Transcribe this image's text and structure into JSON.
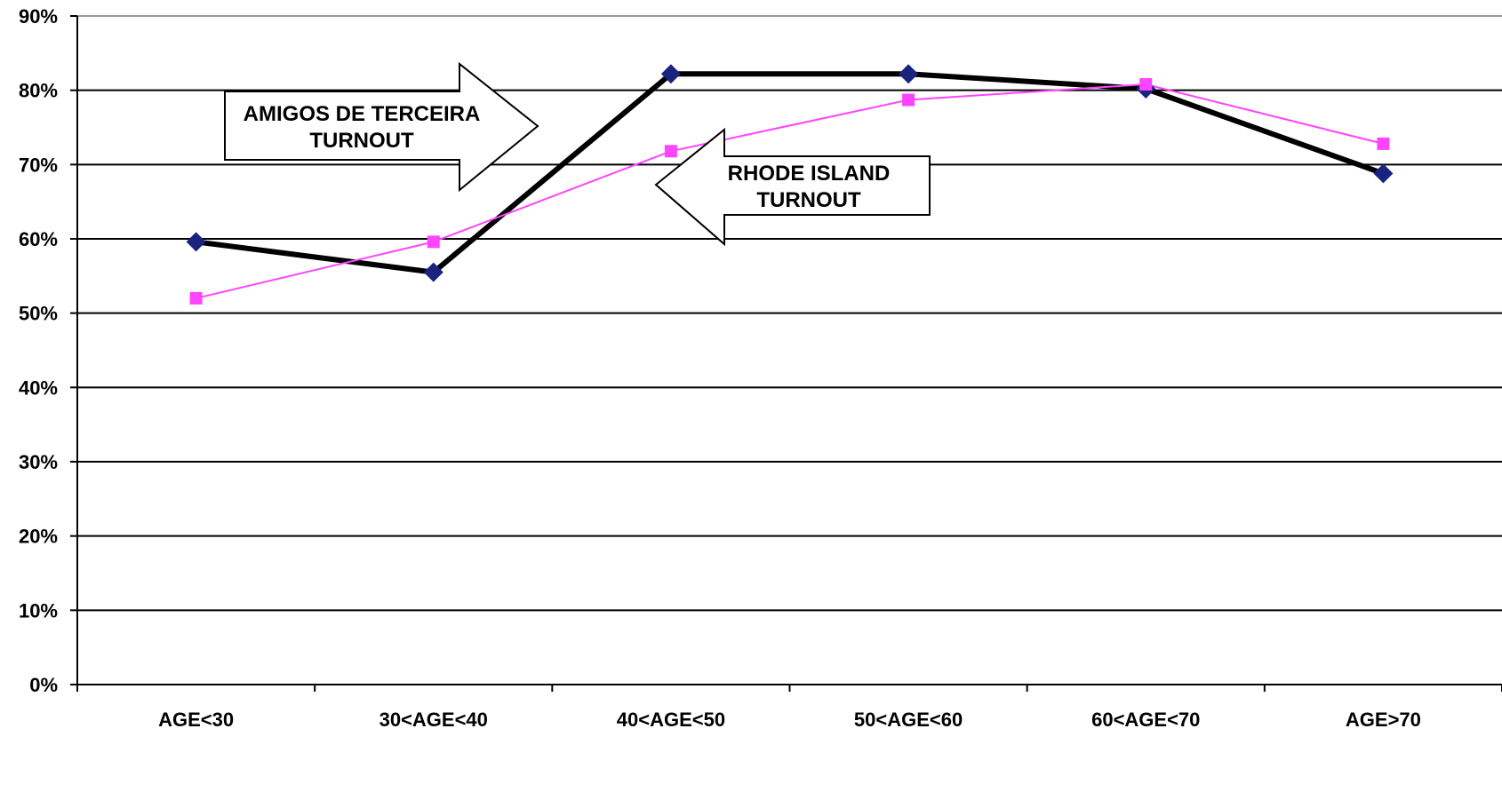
{
  "chart_data": {
    "type": "line",
    "title": "",
    "xlabel": "",
    "ylabel": "",
    "categories": [
      "AGE<30",
      "30<AGE<40",
      "40<AGE<50",
      "50<AGE<60",
      "60<AGE<70",
      "AGE>70"
    ],
    "ylim": [
      0,
      0.9
    ],
    "yticks": [
      0,
      0.1,
      0.2,
      0.3,
      0.4,
      0.5,
      0.6,
      0.7,
      0.8,
      0.9
    ],
    "ytick_labels": [
      "0%",
      "10%",
      "20%",
      "30%",
      "40%",
      "50%",
      "60%",
      "70%",
      "80%",
      "90%"
    ],
    "grid": true,
    "series": [
      {
        "values": [
          0.596,
          0.555,
          0.822,
          0.822,
          0.802,
          0.688
        ],
        "color": "#000000",
        "marker": "diamond",
        "marker_color": "#1a237e"
      },
      {
        "values": [
          0.52,
          0.596,
          0.718,
          0.787,
          0.808,
          0.728
        ],
        "color": "#ff44ff",
        "marker": "square",
        "marker_color": "#ff44ff"
      }
    ],
    "annotations": [
      {
        "lines": [
          "AMIGOS DE TERCEIRA",
          "TURNOUT"
        ],
        "arrow": "right"
      },
      {
        "lines": [
          "RHODE ISLAND",
          "TURNOUT"
        ],
        "arrow": "left"
      }
    ]
  }
}
